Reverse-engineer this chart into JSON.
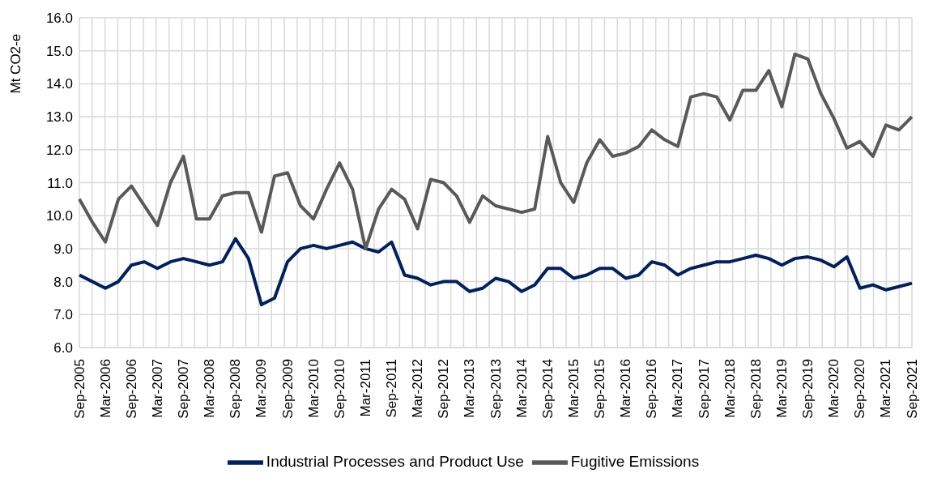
{
  "chart_data": {
    "type": "line",
    "ylabel": "Mt CO2-e",
    "categories": [
      "Sep-2005",
      null,
      "Mar-2006",
      null,
      "Sep-2006",
      null,
      "Mar-2007",
      null,
      "Sep-2007",
      null,
      "Mar-2008",
      null,
      "Sep-2008",
      null,
      "Mar-2009",
      null,
      "Sep-2009",
      null,
      "Mar-2010",
      null,
      "Sep-2010",
      null,
      "Mar-2011",
      null,
      "Sep-2011",
      null,
      "Mar-2012",
      null,
      "Sep-2012",
      null,
      "Mar-2013",
      null,
      "Sep-2013",
      null,
      "Mar-2014",
      null,
      "Sep-2014",
      null,
      "Mar-2015",
      null,
      "Sep-2015",
      null,
      "Mar-2016",
      null,
      "Sep-2016",
      null,
      "Mar-2017",
      null,
      "Sep-2017",
      null,
      "Mar-2018",
      null,
      "Sep-2018",
      null,
      "Mar-2019",
      null,
      "Sep-2019",
      null,
      "Mar-2020",
      null,
      "Sep-2020",
      null,
      "Mar-2021",
      null,
      "Sep-2021"
    ],
    "series": [
      {
        "name": "Industrial Processes and Product Use",
        "color": "#002060",
        "values": [
          8.2,
          8.0,
          7.8,
          8.0,
          8.5,
          8.6,
          8.4,
          8.6,
          8.7,
          8.6,
          8.5,
          8.6,
          9.3,
          8.7,
          7.3,
          7.5,
          8.6,
          9.0,
          9.1,
          9.0,
          9.1,
          9.2,
          9.0,
          8.9,
          9.2,
          8.2,
          8.1,
          7.9,
          8.0,
          8.0,
          7.7,
          7.8,
          8.1,
          8.0,
          7.7,
          7.9,
          8.4,
          8.4,
          8.1,
          8.2,
          8.4,
          8.4,
          8.1,
          8.2,
          8.6,
          8.5,
          8.2,
          8.4,
          8.5,
          8.6,
          8.6,
          8.7,
          8.8,
          8.7,
          8.5,
          8.7,
          8.75,
          8.65,
          8.45,
          8.75,
          7.8,
          7.9,
          7.75,
          7.85,
          7.95
        ]
      },
      {
        "name": "Fugitive Emissions",
        "color": "#595959",
        "values": [
          10.5,
          9.8,
          9.2,
          10.5,
          10.9,
          10.3,
          9.7,
          11.0,
          11.8,
          9.9,
          9.9,
          10.6,
          10.7,
          10.7,
          9.5,
          11.2,
          11.3,
          10.3,
          9.9,
          10.8,
          11.6,
          10.8,
          9.0,
          10.2,
          10.8,
          10.5,
          9.6,
          11.1,
          11.0,
          10.6,
          9.8,
          10.6,
          10.3,
          10.2,
          10.1,
          10.2,
          12.4,
          11.0,
          10.4,
          11.6,
          12.3,
          11.8,
          11.9,
          12.1,
          12.6,
          12.3,
          12.1,
          13.6,
          13.7,
          13.6,
          12.9,
          13.8,
          13.8,
          14.4,
          13.3,
          14.9,
          14.75,
          13.7,
          12.95,
          12.05,
          12.25,
          11.8,
          12.75,
          12.6,
          13.0
        ]
      }
    ],
    "ylim": [
      6,
      16
    ],
    "yticks": [
      {
        "value": 6,
        "label": "6.0"
      },
      {
        "value": 7,
        "label": "7.0"
      },
      {
        "value": 8,
        "label": "8.0"
      },
      {
        "value": 9,
        "label": "9.0"
      },
      {
        "value": 10,
        "label": "10.0"
      },
      {
        "value": 11,
        "label": "11.0"
      },
      {
        "value": 12,
        "label": "12.0"
      },
      {
        "value": 13,
        "label": "13.0"
      },
      {
        "value": 14,
        "label": "14.0"
      },
      {
        "value": 15,
        "label": "15.0"
      },
      {
        "value": 16,
        "label": "16.0"
      }
    ],
    "grid": true,
    "legend": "bottom",
    "marker": "none",
    "line_style": "solid"
  }
}
